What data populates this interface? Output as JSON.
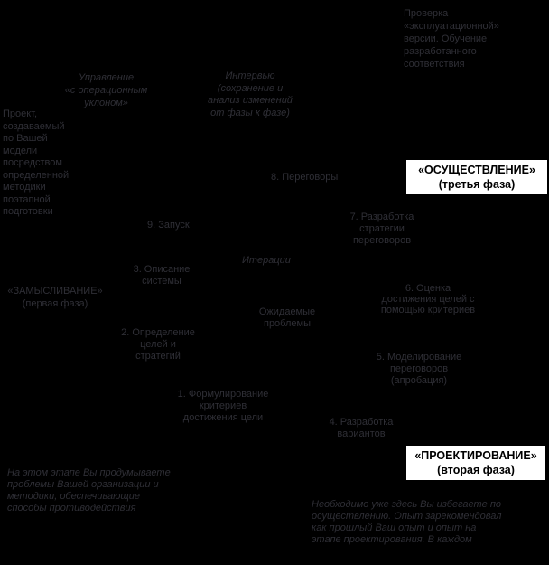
{
  "canvas": {
    "background_color": "#000000",
    "dim_text_color": "#2f2f36",
    "phase_box_bg": "#ffffff",
    "phase_box_text_color": "#000000"
  },
  "phases": {
    "implementation": "«ОСУЩЕСТВЛЕНИЕ»\n(третья фаза)",
    "design": "«ПРОЕКТИРОВАНИЕ»\n(вторая фаза)",
    "conception": "«ЗАМЫСЛИВАНИЕ»\n(первая фаза)"
  },
  "steps": {
    "s1": "1. Формулирование\nкритериев\nдостижения цели",
    "s2": "2. Определение\nцелей и\nстратегий",
    "s3": "3. Описание\nсистемы",
    "s4": "4. Разработка\nвариантов",
    "s5": "5. Моделирование\nпереговоров\n(апробация)",
    "s6": "6. Оценка\nдостижения целей с\nпомощью критериев",
    "s7": "7. Разработка\nстратегии\nпереговоров",
    "s8": "8. Переговоры",
    "s9": "9. Запуск"
  },
  "annotations": {
    "iterations": "Итерации",
    "expected_problems": "Ожидаемые\nпроблемы",
    "management": "Управление\n«с операционным\nуклоном»",
    "interview": "Интервью\n(сохранение и\nанализ изменений\nот фазы к фазе)",
    "project_model": "Проект,\nсоздаваемый\nпо Вашей\nмодели\nпосредством\nопределенной\nметодики\nпоэтапной\nподготовки",
    "top_right_note": "Проверка\n«эксплуатационной»\nверсии. Обучение\nразработанного\nсоответствия",
    "bottom_left_note": "На этом этапе Вы продумываете\nпроблемы Вашей организации и\nметодики, обеспечивающие\nспособы противодействия",
    "bottom_right_note": "Необходимо уже здесь Вы избегаете по\nосуществлению. Опыт зарекомендовал\nкак прошлый Ваш опыт и опыт на\nэтапе проектирования. В каждом"
  }
}
